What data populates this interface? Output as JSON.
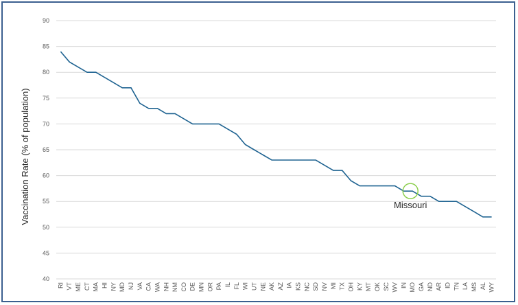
{
  "chart_data": {
    "type": "line",
    "title": "",
    "xlabel": "",
    "ylabel": "Vaccination Rate (% of population)",
    "ylim": [
      40,
      90
    ],
    "yticks": [
      40,
      45,
      50,
      55,
      60,
      65,
      70,
      75,
      80,
      85,
      90
    ],
    "grid": true,
    "categories": [
      "RI",
      "VT",
      "ME",
      "CT",
      "MA",
      "HI",
      "NY",
      "MD",
      "NJ",
      "VA",
      "CA",
      "WA",
      "NH",
      "NM",
      "CO",
      "DE",
      "MN",
      "OR",
      "PA",
      "IL",
      "FL",
      "WI",
      "UT",
      "NE",
      "AK",
      "AZ",
      "IA",
      "KS",
      "NC",
      "SD",
      "NV",
      "MI",
      "TX",
      "OH",
      "KY",
      "MT",
      "OK",
      "SC",
      "WV",
      "IN",
      "MO",
      "GA",
      "ND",
      "AR",
      "ID",
      "TN",
      "LA",
      "MS",
      "AL",
      "WY"
    ],
    "series": [
      {
        "color": "#1f6391",
        "values": [
          84,
          82,
          81,
          80,
          80,
          79,
          78,
          77,
          77,
          74,
          73,
          73,
          72,
          72,
          71,
          70,
          70,
          70,
          70,
          69,
          68,
          66,
          65,
          64,
          63,
          63,
          63,
          63,
          63,
          63,
          62,
          61,
          61,
          59,
          58,
          58,
          58,
          58,
          58,
          57,
          57,
          56,
          56,
          55,
          55,
          55,
          54,
          53,
          52,
          52
        ]
      }
    ],
    "annotation": {
      "text": "Missouri",
      "category": "MO",
      "value": 57,
      "marker": "circle",
      "marker_color": "#8ccf4d"
    }
  }
}
